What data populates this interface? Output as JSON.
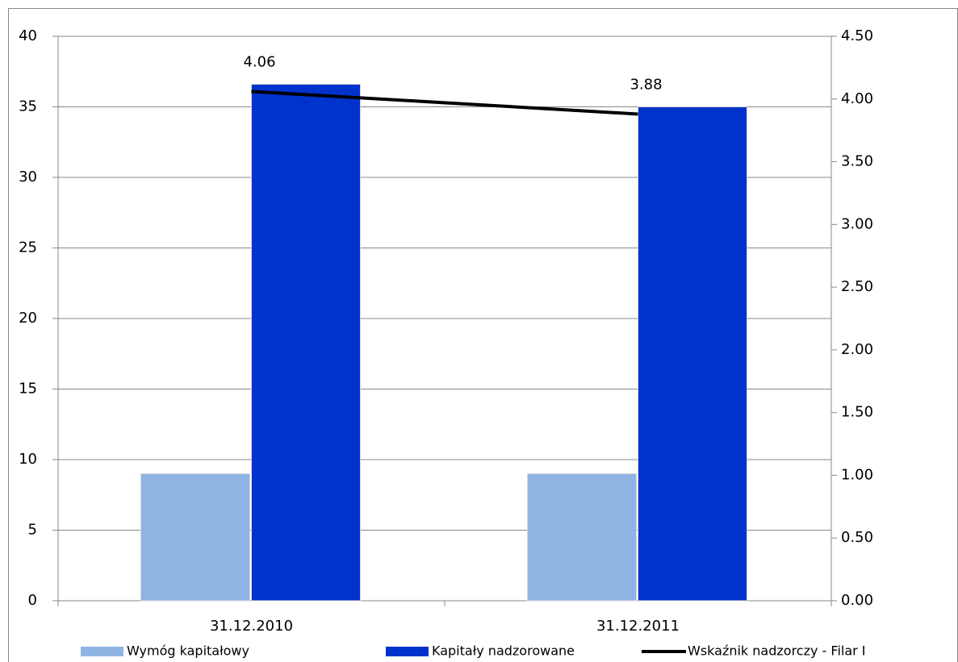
{
  "chart_data": {
    "type": "bar",
    "categories": [
      "31.12.2010",
      "31.12.2011"
    ],
    "series": [
      {
        "name": "Wymóg kapitałowy",
        "color": "#8eb4e3",
        "type": "bar",
        "values": [
          9,
          9
        ]
      },
      {
        "name": "Kapitały nadzorowane",
        "color": "#0033cc",
        "type": "bar",
        "values": [
          36.6,
          35.0
        ]
      },
      {
        "name": "Wskaźnik nadzorczy - Filar I",
        "color": "#000000",
        "type": "line",
        "axis": "y2",
        "values": [
          4.06,
          3.88
        ]
      }
    ],
    "ylim": [
      0,
      40
    ],
    "yticks": [
      0,
      5,
      10,
      15,
      20,
      25,
      30,
      35,
      40
    ],
    "y2lim": [
      0,
      4.5
    ],
    "y2ticks": [
      {
        "value": 0,
        "label": "0.00"
      },
      {
        "value": 0.5,
        "label": "0.50"
      },
      {
        "value": 1,
        "label": "1.00"
      },
      {
        "value": 1.5,
        "label": "1.50"
      },
      {
        "value": 2,
        "label": "2.00"
      },
      {
        "value": 2.5,
        "label": "2.50"
      },
      {
        "value": 3,
        "label": "3.00"
      },
      {
        "value": 3.5,
        "label": "3.50"
      },
      {
        "value": 4,
        "label": "4.00"
      },
      {
        "value": 4.5,
        "label": "4.50"
      }
    ],
    "grid": true,
    "legend": "bottom"
  }
}
